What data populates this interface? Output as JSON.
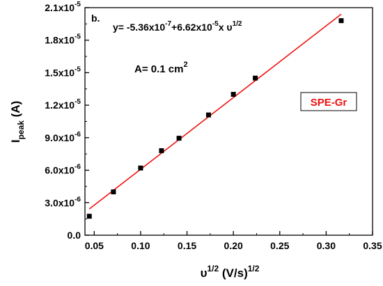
{
  "chart_data": {
    "type": "scatter",
    "panel_label": "b.",
    "title": "",
    "xlabel": {
      "base": "υ",
      "sup": "1/2",
      "rest": " (V/s)",
      "sup2": "1/2"
    },
    "ylabel": {
      "base": "I",
      "sub": "peak",
      "rest": " (A)"
    },
    "xlim": [
      0.04,
      0.35
    ],
    "ylim": [
      0.0,
      2.1e-05
    ],
    "x_ticks": [
      0.05,
      0.1,
      0.15,
      0.2,
      0.25,
      0.3,
      0.35
    ],
    "x_tick_labels": [
      "0.05",
      "0.10",
      "0.15",
      "0.20",
      "0.25",
      "0.30",
      "0.35"
    ],
    "y_ticks": [
      0.0,
      3e-06,
      6e-06,
      9e-06,
      1.2e-05,
      1.5e-05,
      1.8e-05,
      2.1e-05
    ],
    "y_tick_labels": [
      {
        "mant": "0.0",
        "exp": ""
      },
      {
        "mant": "3.0x10",
        "exp": "-6"
      },
      {
        "mant": "6.0x10",
        "exp": "-6"
      },
      {
        "mant": "9.0x10",
        "exp": "-6"
      },
      {
        "mant": "1.2x10",
        "exp": "-5"
      },
      {
        "mant": "1.5x10",
        "exp": "-5"
      },
      {
        "mant": "1.8x10",
        "exp": "-5"
      },
      {
        "mant": "2.1x10",
        "exp": "-5"
      }
    ],
    "series": [
      {
        "marker": "square",
        "color": "#000000",
        "x": [
          0.0447,
          0.0707,
          0.1,
          0.1225,
          0.1414,
          0.1732,
          0.2,
          0.2236,
          0.3162
        ],
        "y": [
          1.75e-06,
          4e-06,
          6.2e-06,
          7.8e-06,
          8.95e-06,
          1.11e-05,
          1.3e-05,
          1.45e-05,
          1.98e-05
        ]
      }
    ],
    "fit": {
      "color": "#ee1111",
      "intercept": -5.36e-07,
      "slope": 6.62e-05,
      "x_range": [
        0.0447,
        0.3162
      ]
    },
    "annotations": {
      "equation": {
        "p1": "y= -5.36x10",
        "sup1": "-7",
        "p2": "+6.62x10",
        "sup2": "-5",
        "p3": "x υ",
        "sup3": "1/2"
      },
      "area": {
        "text": "A= 0.1 cm",
        "sup": "2"
      },
      "legend_label": "SPE-Gr",
      "legend_color": "#ee1111"
    },
    "grid": false
  }
}
